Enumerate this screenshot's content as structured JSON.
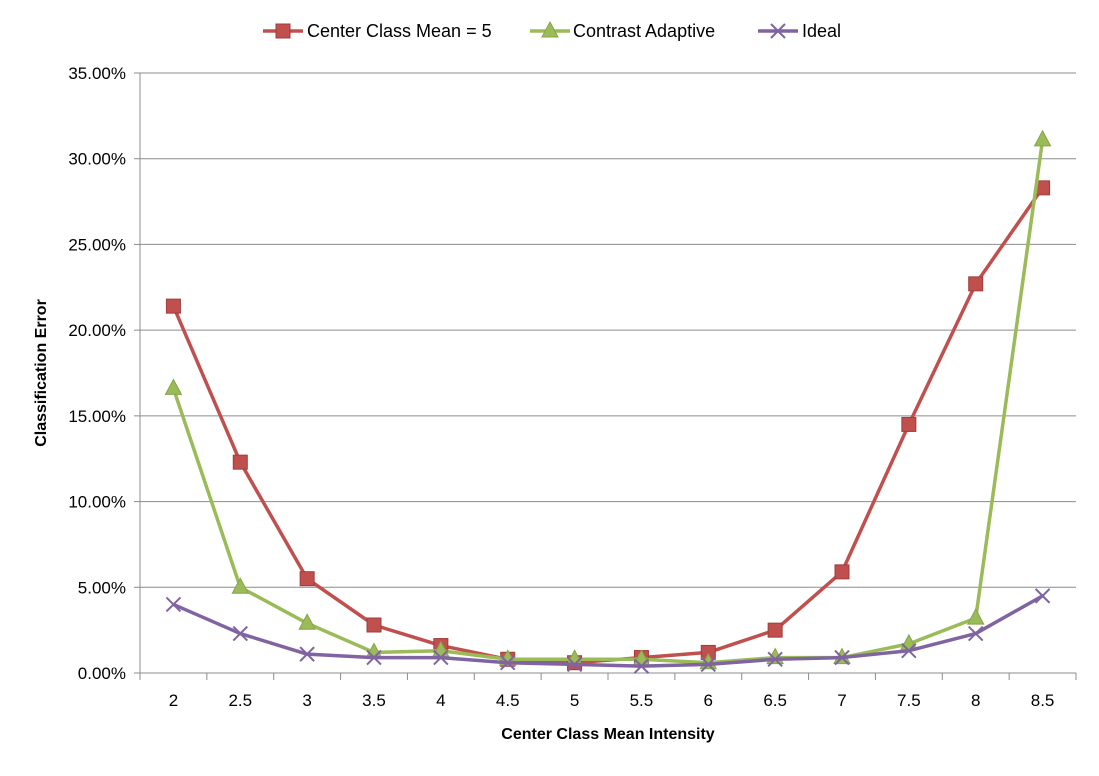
{
  "chart_data": {
    "type": "line",
    "title": "",
    "xlabel": "Center Class Mean Intensity",
    "ylabel": "Classification Error",
    "categories": [
      "2",
      "2.5",
      "3",
      "3.5",
      "4",
      "4.5",
      "5",
      "5.5",
      "6",
      "6.5",
      "7",
      "7.5",
      "8",
      "8.5"
    ],
    "y_ticks": [
      "0.00%",
      "5.00%",
      "10.00%",
      "15.00%",
      "20.00%",
      "25.00%",
      "30.00%",
      "35.00%"
    ],
    "ylim": [
      0,
      35
    ],
    "y_unit": "%",
    "grid": "horizontal",
    "legend_position": "top-center",
    "series": [
      {
        "name": "Center Class Mean = 5",
        "color": "#c0504d",
        "marker": "square",
        "values": [
          21.4,
          12.3,
          5.5,
          2.8,
          1.6,
          0.8,
          0.6,
          0.9,
          1.2,
          2.5,
          5.9,
          14.5,
          22.7,
          28.3
        ]
      },
      {
        "name": "Contrast Adaptive",
        "color": "#9bbb59",
        "marker": "triangle",
        "values": [
          16.6,
          5.0,
          2.9,
          1.2,
          1.3,
          0.8,
          0.8,
          0.8,
          0.6,
          0.9,
          0.9,
          1.7,
          3.2,
          31.1
        ]
      },
      {
        "name": "Ideal",
        "color": "#8064a2",
        "marker": "x",
        "values": [
          4.0,
          2.3,
          1.1,
          0.9,
          0.9,
          0.6,
          0.5,
          0.4,
          0.5,
          0.8,
          0.9,
          1.3,
          2.3,
          4.5
        ]
      }
    ]
  }
}
